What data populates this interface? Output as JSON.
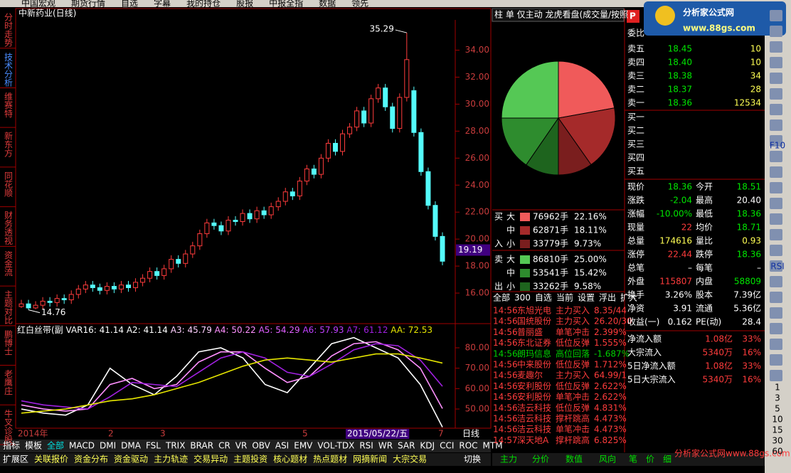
{
  "menu": [
    "中国宏观",
    "期货行情",
    "自选",
    "字幕",
    "我的持仓",
    "股报",
    "中报全指",
    "数据",
    "领先"
  ],
  "sidebar": [
    "分时走势",
    "技术分析",
    "维赛特",
    "新东方",
    "同花顺",
    "财务透视",
    "资金流",
    "主题对比",
    "鹏博士",
    "老鹰庄",
    "牛叉诊股"
  ],
  "sidebar_active": 1,
  "main_chart": {
    "type": "candlestick",
    "title": "中新药业(日线)",
    "open": [
      15.0,
      15.2,
      14.9,
      15.1,
      15.4,
      15.3,
      15.6,
      15.5,
      15.9,
      16.3,
      16.6,
      16.4,
      16.2,
      16.5,
      16.3,
      16.6,
      16.4,
      16.8,
      17.1,
      17.6,
      17.3,
      17.8,
      18.5,
      18.2,
      18.9,
      19.5,
      20.4,
      21.2,
      21.0,
      20.6,
      21.4,
      21.3,
      21.9,
      21.5,
      22.1,
      21.8,
      22.4,
      22.8,
      23.5,
      23.2,
      24.3,
      25.2,
      24.8,
      26.0,
      27.1,
      26.5,
      27.8,
      28.3,
      29.5,
      28.6,
      30.4,
      31.2,
      29.8,
      28.2,
      30.5,
      31.0,
      27.9,
      25.0,
      22.5,
      20.2
    ],
    "high": [
      15.5,
      15.5,
      15.4,
      15.7,
      15.7,
      15.9,
      15.9,
      16.2,
      16.6,
      16.9,
      16.9,
      16.7,
      16.8,
      16.8,
      16.9,
      16.9,
      17.1,
      17.4,
      17.9,
      17.9,
      18.1,
      18.8,
      18.8,
      19.2,
      19.8,
      20.7,
      21.5,
      21.5,
      21.3,
      21.7,
      21.7,
      22.2,
      22.2,
      22.4,
      22.4,
      22.7,
      23.1,
      23.8,
      23.8,
      24.6,
      25.5,
      25.5,
      26.3,
      27.4,
      27.4,
      28.1,
      28.6,
      29.8,
      29.8,
      30.7,
      31.5,
      31.5,
      30.1,
      30.8,
      35.29,
      31.3,
      28.2,
      25.3,
      22.8,
      20.5
    ],
    "low": [
      14.9,
      14.76,
      14.8,
      14.8,
      15.0,
      15.0,
      15.2,
      15.2,
      15.6,
      16.0,
      16.1,
      15.9,
      15.9,
      16.0,
      16.0,
      16.1,
      16.1,
      16.5,
      16.8,
      17.0,
      17.0,
      17.5,
      17.9,
      17.9,
      18.6,
      19.2,
      20.1,
      20.7,
      20.3,
      20.3,
      21.0,
      21.0,
      21.2,
      21.2,
      21.5,
      21.5,
      22.1,
      22.5,
      22.9,
      22.9,
      24.0,
      24.5,
      24.5,
      25.7,
      26.2,
      26.2,
      27.5,
      28.0,
      28.3,
      28.3,
      30.1,
      29.5,
      27.9,
      27.9,
      30.2,
      27.6,
      24.7,
      22.2,
      19.9,
      18.06
    ],
    "close": [
      15.2,
      14.9,
      15.1,
      15.4,
      15.3,
      15.6,
      15.5,
      15.9,
      16.3,
      16.6,
      16.4,
      16.2,
      16.5,
      16.3,
      16.6,
      16.4,
      16.8,
      17.1,
      17.6,
      17.3,
      17.8,
      18.5,
      18.2,
      18.9,
      19.5,
      20.4,
      21.2,
      21.0,
      20.6,
      21.4,
      21.3,
      21.9,
      21.5,
      22.1,
      21.8,
      22.4,
      22.8,
      23.5,
      23.2,
      24.3,
      25.2,
      24.8,
      26.0,
      27.1,
      26.5,
      27.8,
      28.3,
      29.5,
      28.6,
      30.4,
      31.2,
      29.8,
      28.2,
      30.5,
      33.3,
      27.9,
      25.0,
      22.5,
      20.2,
      18.36
    ],
    "ylim": [
      14.0,
      36.4
    ],
    "yticks": [
      {
        "value": 16,
        "label": "16.00"
      },
      {
        "value": 18,
        "label": "18.00"
      },
      {
        "value": 20,
        "label": "20.00"
      },
      {
        "value": 22,
        "label": "22.00"
      },
      {
        "value": 24,
        "label": "24.00"
      },
      {
        "value": 26,
        "label": "26.00"
      },
      {
        "value": 28,
        "label": "28.00"
      },
      {
        "value": 30,
        "label": "30.00"
      },
      {
        "value": 32,
        "label": "32.00"
      },
      {
        "value": 34,
        "label": "34.00"
      }
    ],
    "high_label": 35.29,
    "low_label": 14.76,
    "cursor_price": 19.19,
    "x_labels": [
      "2014年",
      "2",
      "3",
      "5",
      "2015/05/22/五",
      "7"
    ],
    "period": "日线",
    "up_color": "#ff3c3c",
    "down_color": "#54fcfc"
  },
  "indicator": {
    "type": "line",
    "title": "红白丝带(副",
    "ylim": [
      41.3,
      90.8
    ],
    "yticks": [
      {
        "value": 50,
        "label": "50.00"
      },
      {
        "value": 60,
        "label": "60.00"
      },
      {
        "value": 70,
        "label": "70.00"
      },
      {
        "value": 80,
        "label": "80.00"
      }
    ],
    "series": [
      {
        "name": "VAR16:",
        "last": 41.14,
        "color": "#ffffff",
        "values": [
          50,
          48,
          47,
          52,
          70,
          62,
          57,
          66,
          78,
          80,
          75,
          62,
          58,
          70,
          82,
          85,
          80,
          75,
          62,
          41.14
        ]
      },
      {
        "name": "A2:",
        "last": 41.14,
        "color": "#ffffff"
      },
      {
        "name": "A3:",
        "last": 45.79,
        "color": "#ffd0ff"
      },
      {
        "name": "A4:",
        "last": 50.22,
        "color": "#ff90ff",
        "values": [
          52,
          50,
          49,
          50,
          62,
          65,
          60,
          62,
          73,
          78,
          78,
          70,
          63,
          66,
          76,
          82,
          83,
          79,
          70,
          50.22
        ]
      },
      {
        "name": "A5:",
        "last": 54.29,
        "color": "#e060ff"
      },
      {
        "name": "A6:",
        "last": 57.93,
        "color": "#c040ff"
      },
      {
        "name": "A7:",
        "last": 61.12,
        "color": "#a020e0",
        "values": [
          54,
          52,
          51,
          50,
          56,
          63,
          62,
          61,
          68,
          75,
          78,
          75,
          68,
          66,
          72,
          79,
          82,
          81,
          74,
          61.12
        ]
      },
      {
        "name": "AA:",
        "last": 72.53,
        "color": "#e6e600",
        "values": [
          48,
          49,
          50,
          52,
          54,
          55,
          57,
          60,
          63,
          67,
          71,
          74,
          75,
          74,
          73,
          75,
          77,
          77,
          75,
          72.53
        ]
      }
    ]
  },
  "indicator_tabs": [
    "指标",
    "模板",
    "全部",
    "MACD",
    "DMI",
    "DMA",
    "FSL",
    "TRIX",
    "BRAR",
    "CR",
    "VR",
    "OBV",
    "ASI",
    "EMV",
    "VOL-TDX",
    "RSI",
    "WR",
    "SAR",
    "KDJ",
    "CCI",
    "ROC",
    "MTM"
  ],
  "bottom_tabs": [
    "扩展区",
    "关联报价",
    "资金分布",
    "资金驱动",
    "主力轨迹",
    "交易异动",
    "主题投资",
    "核心题材",
    "热点题材",
    "网摘新闻",
    "大宗交易"
  ],
  "switch": "切换",
  "right_header": "柱 单 仅主动 龙虎看盘(成交量/按照",
  "flow_pie": {
    "type": "pie",
    "rows": [
      {
        "side": "买",
        "size": "大",
        "volume": "76962手",
        "value": 22.16,
        "value_label": "22.16%",
        "color": "#f05a5a",
        "kind": "buy"
      },
      {
        "side": null,
        "size": "中",
        "volume": "62871手",
        "value": 18.11,
        "value_label": "18.11%",
        "color": "#a52a2a",
        "kind": "buy"
      },
      {
        "side": "入",
        "size": "小",
        "volume": "33779手",
        "value": 9.73,
        "value_label": "9.73%",
        "color": "#7a1e1e",
        "kind": "buy"
      },
      {
        "side": "卖",
        "size": "大",
        "volume": "86810手",
        "value": 25.0,
        "value_label": "25.00%",
        "color": "#55c855",
        "kind": "sell"
      },
      {
        "side": null,
        "size": "中",
        "volume": "53541手",
        "value": 15.42,
        "value_label": "15.42%",
        "color": "#2e8c2e",
        "kind": "sell"
      },
      {
        "side": "出",
        "size": "小",
        "volume": "33262手",
        "value": 9.58,
        "value_label": "9.58%",
        "color": "#1e641e",
        "kind": "sell"
      }
    ]
  },
  "list_tabs": [
    "全部",
    "300",
    "自选",
    "当前",
    "设置",
    "浮出",
    "扩大"
  ],
  "trades": [
    {
      "cells": [
        "14:56",
        "东旭光电",
        "主力买入",
        "8.35/44"
      ],
      "color": "#ff3c3c"
    },
    {
      "cells": [
        "14:56",
        "国统股份",
        "主力买入",
        "26.20/30"
      ],
      "color": "#ff3c3c"
    },
    {
      "cells": [
        "14:56",
        "普丽盛",
        "单笔冲击",
        "2.399%"
      ],
      "color": "#ff3c3c"
    },
    {
      "cells": [
        "14:56",
        "东北证券",
        "低位反弹",
        "1.555%"
      ],
      "color": "#ff3c3c"
    },
    {
      "cells": [
        "14:56",
        "朗玛信息",
        "高位回落",
        "-1.687%"
      ],
      "color": "#00d000"
    },
    {
      "cells": [
        "14:56",
        "中来股份",
        "低位反弹",
        "1.712%"
      ],
      "color": "#ff3c3c"
    },
    {
      "cells": [
        "14:56",
        "麦趣尔",
        "主力买入",
        "64.99/1"
      ],
      "color": "#ff3c3c"
    },
    {
      "cells": [
        "14:56",
        "安利股份",
        "低位反弹",
        "2.622%"
      ],
      "color": "#ff3c3c"
    },
    {
      "cells": [
        "14:56",
        "安利股份",
        "单笔冲击",
        "2.622%"
      ],
      "color": "#ff3c3c"
    },
    {
      "cells": [
        "14:56",
        "洁云科技",
        "低位反弹",
        "4.831%"
      ],
      "color": "#ff3c3c"
    },
    {
      "cells": [
        "14:56",
        "洁云科技",
        "撑杆跳高",
        "4.473%"
      ],
      "color": "#ff3c3c"
    },
    {
      "cells": [
        "14:56",
        "洁云科技",
        "单笔冲击",
        "4.473%"
      ],
      "color": "#ff3c3c"
    },
    {
      "cells": [
        "14:57",
        "深天地A",
        "撑杆跳高",
        "6.825%"
      ],
      "color": "#ff3c3c"
    }
  ],
  "bottom_right_tabs": [
    "主力",
    "分价",
    "数值",
    "风向",
    "笔",
    "价",
    "细"
  ],
  "logo": {
    "icon": "P",
    "name": "分析家公式网",
    "url": "www.88gs.com",
    "footer": "分析家公式网www.88gs.com"
  },
  "order_book": {
    "ratio_label": "委比",
    "asks": [
      [
        "卖五",
        "18.45",
        "10"
      ],
      [
        "卖四",
        "18.40",
        "10"
      ],
      [
        "卖三",
        "18.38",
        "34"
      ],
      [
        "卖二",
        "18.37",
        "28"
      ],
      [
        "卖一",
        "18.36",
        "12534"
      ]
    ],
    "bids": [
      "买一",
      "买二",
      "买三",
      "买四",
      "买五"
    ]
  },
  "stats": [
    {
      "cells": [
        "现价",
        "18.36",
        "今开",
        "18.51"
      ],
      "colors": [
        "#00e600",
        "#00e600"
      ]
    },
    {
      "cells": [
        "涨跌",
        "-2.04",
        "最高",
        "20.40"
      ],
      "colors": [
        "#00e600",
        "#ffffff"
      ]
    },
    {
      "cells": [
        "涨幅",
        "-10.00%",
        "最低",
        "18.36"
      ],
      "colors": [
        "#00e600",
        "#00e600"
      ]
    },
    {
      "cells": [
        "现量",
        "22",
        "均价",
        "18.71"
      ],
      "colors": [
        "#ff3c3c",
        "#00e600"
      ]
    },
    {
      "cells": [
        "总量",
        "174616",
        "量比",
        "0.93"
      ],
      "colors": [
        "#ffff54",
        "#ffff54"
      ]
    },
    {
      "cells": [
        "涨停",
        "22.44",
        "跌停",
        "18.36"
      ],
      "colors": [
        "#ff3c3c",
        "#00e600"
      ]
    },
    {
      "cells": [
        "总笔",
        "–",
        "每笔",
        "–"
      ],
      "colors": [
        "#ffffff",
        "#ffffff"
      ]
    },
    {
      "cells": [
        "外盘",
        "115807",
        "内盘",
        "58809"
      ],
      "colors": [
        "#ff3c3c",
        "#00e600"
      ]
    },
    {
      "cells": [
        "换手",
        "3.26%",
        "股本",
        "7.39亿"
      ],
      "colors": [
        "#ffffff",
        "#ffffff"
      ]
    },
    {
      "cells": [
        "净资",
        "3.91",
        "流通",
        "5.36亿"
      ],
      "colors": [
        "#ffffff",
        "#ffffff"
      ]
    },
    {
      "cells": [
        "收益(一)",
        "0.162",
        "PE(动)",
        "28.4"
      ],
      "colors": [
        "#ffffff",
        "#ffffff"
      ]
    }
  ],
  "flows": [
    [
      "净流入额",
      "1.08亿",
      "33%"
    ],
    [
      "大宗流入",
      "5340万",
      "16%"
    ],
    [
      "5日净流入额",
      "1.08亿",
      "33%"
    ],
    [
      "5日大宗流入",
      "5340万",
      "16%"
    ]
  ],
  "toolbar": [
    "F10",
    "RSI",
    "1",
    "3",
    "5",
    "10",
    "15",
    "30",
    "60"
  ]
}
